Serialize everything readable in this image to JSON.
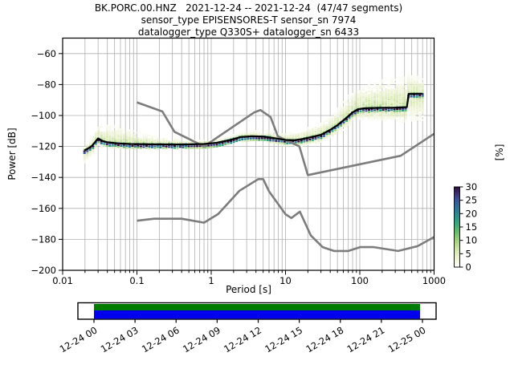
{
  "header": {
    "line1": "BK.PORC.00.HNZ   2021-12-24 -- 2021-12-24  (47/47 segments)",
    "line2": "sensor_type EPISENSORES-T sensor_sn 7974",
    "line3": "datalogger_type Q330S+ datalogger_sn 6433"
  },
  "axes": {
    "xlabel": "Period [s]",
    "ylabel": "Power [dB]",
    "x_tick_labels": [
      "0.01",
      "0.1",
      "1",
      "10",
      "100",
      "1000"
    ],
    "x_tick_values": [
      0.01,
      0.1,
      1,
      10,
      100,
      1000
    ],
    "y_tick_labels": [
      "−60",
      "−80",
      "−100",
      "−120",
      "−140",
      "−160",
      "−180",
      "−200"
    ],
    "y_tick_values": [
      -60,
      -80,
      -100,
      -120,
      -140,
      -160,
      -180,
      -200
    ]
  },
  "colorbar": {
    "label": "[%]",
    "tick_values": [
      0,
      5,
      10,
      15,
      20,
      25,
      30
    ],
    "vmin": 0,
    "vmax": 30
  },
  "timeline": {
    "tick_labels": [
      "12-24 00",
      "12-24 03",
      "12-24 06",
      "12-24 09",
      "12-24 12",
      "12-24 15",
      "12-24 18",
      "12-24 21",
      "12-25 00"
    ],
    "coverage_top_color": "#007c00",
    "coverage_bottom_color": "#0000ee"
  },
  "chart_data": {
    "type": "heatmap",
    "title": "BK.PORC.00.HNZ   2021-12-24 -- 2021-12-24  (47/47 segments)",
    "xlabel": "Period [s]",
    "ylabel": "Power [dB]",
    "xscale": "log",
    "xlim": [
      0.01,
      1000
    ],
    "ylim": [
      -200,
      -50
    ],
    "grid": true,
    "colorbar_label": "[%]",
    "colorbar_range": [
      0,
      30
    ],
    "grid_color": "#b0b0b0",
    "noise_model_color": "#7d7d7d",
    "mode_line_color": "#000000",
    "palette": [
      [
        0.0,
        "#ffffff"
      ],
      [
        0.08,
        "#f2f5dd"
      ],
      [
        0.2,
        "#d8e9b2"
      ],
      [
        0.33,
        "#a3d37f"
      ],
      [
        0.45,
        "#62bb6b"
      ],
      [
        0.55,
        "#35a77c"
      ],
      [
        0.65,
        "#2b8d8f"
      ],
      [
        0.75,
        "#2f6f9a"
      ],
      [
        0.85,
        "#3d4f97"
      ],
      [
        0.93,
        "#3c2a68"
      ],
      [
        1.0,
        "#2e0f3e"
      ]
    ],
    "series": [
      {
        "name": "NLNM (low noise model)",
        "points": [
          [
            0.1,
            -168
          ],
          [
            0.17,
            -166.7
          ],
          [
            0.4,
            -166.7
          ],
          [
            0.8,
            -169.2
          ],
          [
            1.24,
            -163.7
          ],
          [
            2.4,
            -148.6
          ],
          [
            4.3,
            -141.1
          ],
          [
            5,
            -141.1
          ],
          [
            6,
            -149
          ],
          [
            10,
            -163.8
          ],
          [
            12,
            -166.2
          ],
          [
            15.6,
            -162.1
          ],
          [
            21.9,
            -177.5
          ],
          [
            31.6,
            -185
          ],
          [
            45,
            -187.5
          ],
          [
            70,
            -187.5
          ],
          [
            101,
            -185
          ],
          [
            154,
            -185
          ],
          [
            328,
            -187.5
          ],
          [
            600,
            -184.4
          ],
          [
            1000,
            -178.5
          ]
        ]
      },
      {
        "name": "NHNM (high noise model)",
        "points": [
          [
            0.1,
            -91.5
          ],
          [
            0.22,
            -97.4
          ],
          [
            0.32,
            -110.5
          ],
          [
            0.8,
            -120
          ],
          [
            3.8,
            -98
          ],
          [
            4.6,
            -96.5
          ],
          [
            6.3,
            -101
          ],
          [
            7.9,
            -113.5
          ],
          [
            15.4,
            -120
          ],
          [
            20,
            -138.5
          ],
          [
            354.8,
            -126
          ],
          [
            1000,
            -111.8
          ]
        ]
      },
      {
        "name": "PSD mode",
        "points": [
          [
            0.0197,
            -122.5
          ],
          [
            0.022,
            -121.3
          ],
          [
            0.025,
            -119.5
          ],
          [
            0.03,
            -114.8
          ],
          [
            0.034,
            -116.3
          ],
          [
            0.04,
            -117.3
          ],
          [
            0.055,
            -118
          ],
          [
            0.08,
            -118.4
          ],
          [
            0.15,
            -118.6
          ],
          [
            0.4,
            -118.7
          ],
          [
            0.8,
            -118.4
          ],
          [
            1.2,
            -117.6
          ],
          [
            1.8,
            -115.8
          ],
          [
            2.5,
            -113.9
          ],
          [
            3.5,
            -113.4
          ],
          [
            5,
            -113.6
          ],
          [
            7,
            -114.6
          ],
          [
            10,
            -115.8
          ],
          [
            13,
            -116
          ],
          [
            17,
            -115.2
          ],
          [
            22,
            -114
          ],
          [
            30,
            -112.5
          ],
          [
            40,
            -109.3
          ],
          [
            50,
            -106.2
          ],
          [
            65,
            -101.8
          ],
          [
            80,
            -98
          ],
          [
            95,
            -95.9
          ],
          [
            120,
            -95.3
          ],
          [
            200,
            -95
          ],
          [
            300,
            -94.9
          ],
          [
            430,
            -94.6
          ],
          [
            455,
            -86
          ],
          [
            700,
            -85.9
          ]
        ]
      }
    ],
    "density": {
      "period_range": [
        0.0197,
        700
      ],
      "bins": 121,
      "max_percent": 30,
      "envelope": [
        [
          0.02,
          3,
          8
        ],
        [
          0.03,
          12,
          5
        ],
        [
          0.05,
          14,
          3.5
        ],
        [
          0.1,
          10,
          3
        ],
        [
          0.2,
          6.5,
          3
        ],
        [
          0.5,
          3.5,
          2.5
        ],
        [
          1,
          3.5,
          2.5
        ],
        [
          2,
          4,
          3
        ],
        [
          5,
          5,
          3
        ],
        [
          10,
          6,
          4
        ],
        [
          20,
          8,
          5
        ],
        [
          40,
          11,
          6
        ],
        [
          80,
          16,
          7
        ],
        [
          150,
          20,
          8
        ],
        [
          300,
          23,
          9
        ],
        [
          430,
          23,
          10
        ],
        [
          470,
          14,
          18
        ],
        [
          700,
          13,
          19
        ]
      ]
    }
  }
}
